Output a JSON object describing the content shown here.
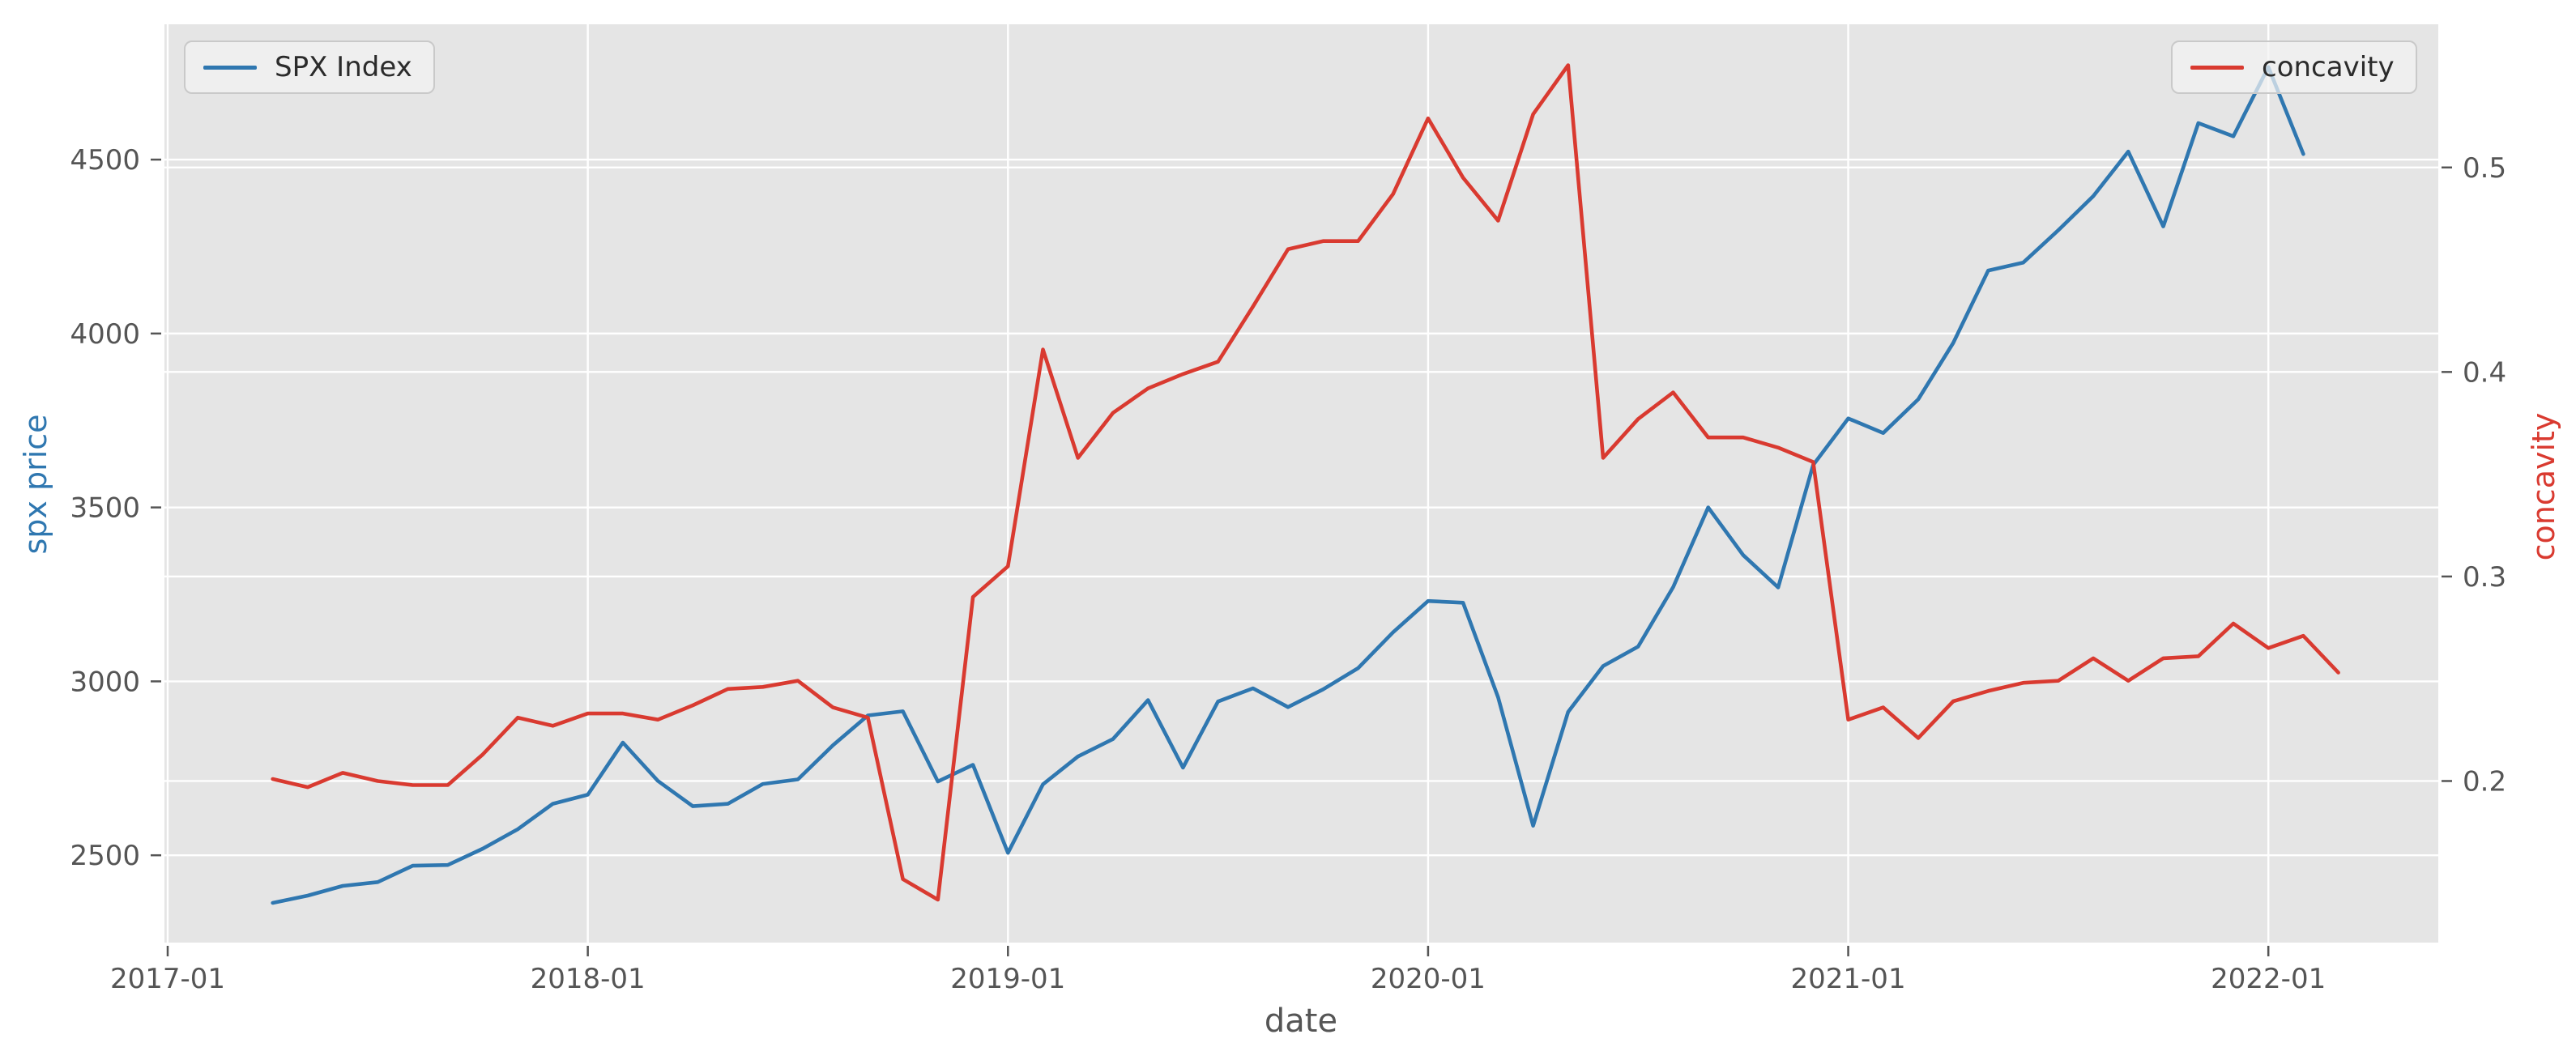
{
  "chart_data": {
    "type": "line",
    "title": "",
    "xlabel": "date",
    "ylabel_left": "spx price",
    "ylabel_right": "concavity",
    "grid": true,
    "plot_background": "#e5e5e5",
    "grid_color": "#ffffff",
    "tick_text_color": "#555555",
    "legend_positions": [
      "upper left",
      "upper right"
    ],
    "x_tick_labels": [
      "2017-01",
      "2018-01",
      "2019-01",
      "2020-01",
      "2021-01",
      "2022-01"
    ],
    "y_left_tick_labels": [
      "2500",
      "3000",
      "3500",
      "4000",
      "4500"
    ],
    "y_left_ticks": [
      2500,
      3000,
      3500,
      4000,
      4500
    ],
    "y_right_tick_labels": [
      "0.2",
      "0.3",
      "0.4",
      "0.5"
    ],
    "y_right_ticks": [
      0.2,
      0.3,
      0.4,
      0.5
    ],
    "y_left_range": [
      2249,
      4889
    ],
    "y_right_range": [
      0.121,
      0.57
    ],
    "x": [
      "2017-03",
      "2017-04",
      "2017-05",
      "2017-06",
      "2017-07",
      "2017-08",
      "2017-09",
      "2017-10",
      "2017-11",
      "2017-12",
      "2018-01",
      "2018-02",
      "2018-03",
      "2018-04",
      "2018-05",
      "2018-06",
      "2018-07",
      "2018-08",
      "2018-09",
      "2018-10",
      "2018-11",
      "2018-12",
      "2019-01",
      "2019-02",
      "2019-03",
      "2019-04",
      "2019-05",
      "2019-06",
      "2019-07",
      "2019-08",
      "2019-09",
      "2019-10",
      "2019-11",
      "2019-12",
      "2020-01",
      "2020-02",
      "2020-03",
      "2020-04",
      "2020-05",
      "2020-06",
      "2020-07",
      "2020-08",
      "2020-09",
      "2020-10",
      "2020-11",
      "2020-12",
      "2021-01",
      "2021-02",
      "2021-03",
      "2021-04",
      "2021-05",
      "2021-06",
      "2021-07",
      "2021-08",
      "2021-09",
      "2021-10",
      "2021-11",
      "2021-12",
      "2022-01",
      "2022-02"
    ],
    "series": [
      {
        "name": "SPX Index",
        "axis": "left",
        "color": "#2f77b0",
        "values": [
          2363,
          2384,
          2412,
          2423,
          2470,
          2472,
          2519,
          2575,
          2648,
          2674,
          2824,
          2714,
          2641,
          2648,
          2705,
          2718,
          2816,
          2902,
          2914,
          2712,
          2760,
          2507,
          2704,
          2784,
          2834,
          2946,
          2752,
          2942,
          2980,
          2926,
          2977,
          3038,
          3141,
          3231,
          3226,
          2954,
          2585,
          2912,
          3044,
          3100,
          3271,
          3500,
          3363,
          3270,
          3622,
          3756,
          3714,
          3811,
          3973,
          4181,
          4204,
          4297,
          4395,
          4523,
          4308,
          4605,
          4567,
          4766,
          4516,
          null
        ]
      },
      {
        "name": "concavity",
        "axis": "right",
        "color": "#d93a30",
        "values": [
          0.201,
          0.197,
          0.204,
          0.2,
          0.198,
          0.198,
          0.213,
          0.231,
          0.227,
          0.233,
          0.233,
          0.23,
          0.237,
          0.245,
          0.246,
          0.249,
          0.236,
          0.231,
          0.152,
          0.142,
          0.29,
          0.305,
          0.411,
          0.358,
          0.38,
          0.392,
          0.399,
          0.405,
          0.432,
          0.46,
          0.464,
          0.464,
          0.487,
          0.524,
          0.495,
          0.474,
          0.526,
          0.55,
          0.358,
          0.377,
          0.39,
          0.368,
          0.368,
          0.363,
          0.356,
          0.23,
          0.236,
          0.221,
          0.239,
          0.244,
          0.248,
          0.249,
          0.26,
          0.249,
          0.26,
          0.261,
          0.277,
          0.265,
          0.271,
          0.253
        ]
      }
    ],
    "legend_left": "SPX Index",
    "legend_right": "concavity"
  },
  "colors": {
    "left_axis_label": "#2f77b0",
    "right_axis_label": "#d93a30",
    "ticks": "#555555"
  }
}
